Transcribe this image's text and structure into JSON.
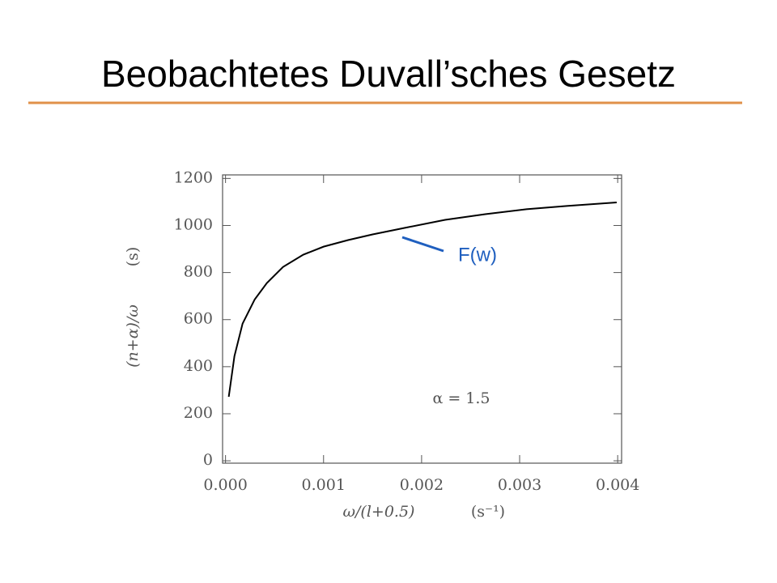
{
  "slide_title": "Beobachtetes Duvall’sches Gesetz",
  "chart_data": {
    "type": "line",
    "x_label": "ω/(l+0.5)",
    "x_unit": "(s⁻¹)",
    "y_label": "(n+α)/ω",
    "y_unit": "(s)",
    "annotations": [
      "α = 1.5",
      "F(w)"
    ],
    "x": [
      3.3e-05,
      9.1e-05,
      0.000174,
      0.000298,
      0.000421,
      0.000587,
      0.000793,
      0.001,
      0.00125,
      0.0015,
      0.00183,
      0.00224,
      0.00265,
      0.00307,
      0.00348,
      0.00399
    ],
    "series": [
      {
        "color": "#000000",
        "values": [
          272,
          445,
          583,
          686,
          755,
          824,
          876,
          910,
          938,
          962,
          990,
          1024,
          1048,
          1069,
          1083,
          1098
        ]
      }
    ],
    "xlim": [
      -3e-05,
      0.00404
    ],
    "ylim": [
      -10,
      1215
    ],
    "xticks": [
      {
        "value": 0,
        "label": "0.000"
      },
      {
        "value": 0.001,
        "label": "0.001"
      },
      {
        "value": 0.002,
        "label": "0.002"
      },
      {
        "value": 0.003,
        "label": "0.003"
      },
      {
        "value": 0.004,
        "label": "0.004"
      }
    ],
    "yticks": [
      0,
      200,
      400,
      600,
      800,
      1000,
      1200
    ]
  }
}
